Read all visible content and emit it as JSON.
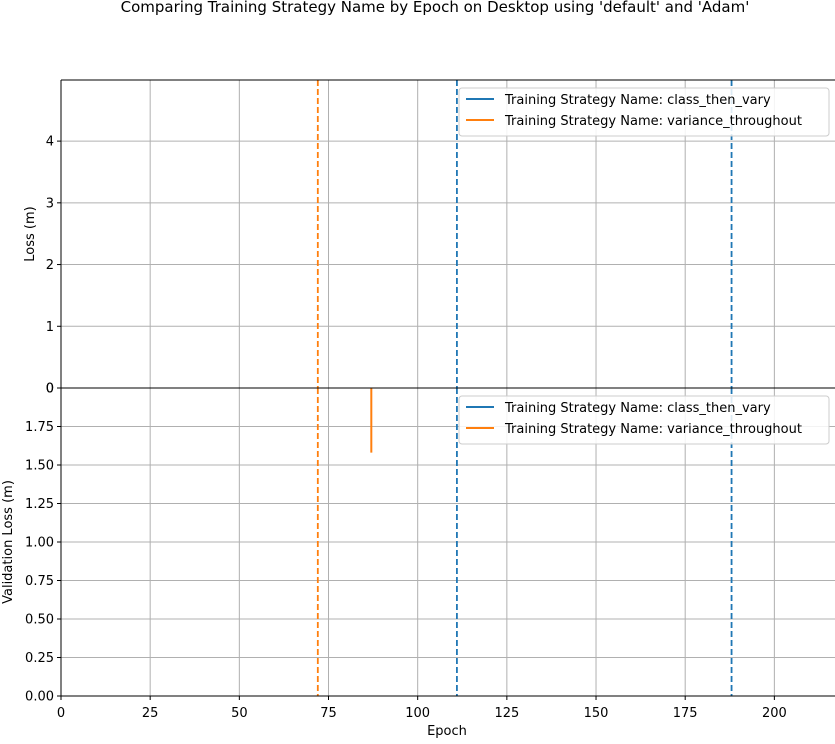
{
  "figure": {
    "title": "Comparing Training Strategy Name by Epoch on Desktop using 'default' and 'Adam'",
    "xlabel": "Epoch"
  },
  "chart_data": [
    {
      "type": "line",
      "ylabel": "Loss (m)",
      "xlim": [
        0,
        217
      ],
      "ylim": [
        0,
        4.99
      ],
      "x_ticks": [
        0,
        25,
        50,
        75,
        100,
        125,
        150,
        175,
        200
      ],
      "y_ticks": [
        0,
        1,
        2,
        3,
        4
      ],
      "y_tick_labels": [
        "0",
        "1",
        "2",
        "3",
        "4"
      ],
      "grid": true,
      "legend_position": "top-right",
      "series": [
        {
          "name": "Training Strategy Name: class_then_vary",
          "color": "#1f77b4",
          "x": [],
          "y": []
        },
        {
          "name": "Training Strategy Name: variance_throughout",
          "color": "#ff7f0e",
          "x": [],
          "y": []
        }
      ],
      "vlines": [
        {
          "x": 72,
          "color": "#ff7f0e",
          "style": "dashed"
        },
        {
          "x": 111,
          "color": "#1f77b4",
          "style": "dashed"
        },
        {
          "x": 188,
          "color": "#1f77b4",
          "style": "dashed"
        }
      ]
    },
    {
      "type": "line",
      "ylabel": "Validation Loss (m)",
      "xlabel": "Epoch",
      "xlim": [
        0,
        217
      ],
      "ylim": [
        0,
        2.0
      ],
      "x_ticks": [
        0,
        25,
        50,
        75,
        100,
        125,
        150,
        175,
        200
      ],
      "x_tick_labels": [
        "0",
        "25",
        "50",
        "75",
        "100",
        "125",
        "150",
        "175",
        "200"
      ],
      "y_ticks": [
        0,
        0.25,
        0.5,
        0.75,
        1.0,
        1.25,
        1.5,
        1.75
      ],
      "y_tick_labels": [
        "0.00",
        "0.25",
        "0.50",
        "0.75",
        "1.00",
        "1.25",
        "1.50",
        "1.75"
      ],
      "top_tick_label": "0",
      "grid": true,
      "legend_position": "top-right",
      "series": [
        {
          "name": "Training Strategy Name: class_then_vary",
          "color": "#1f77b4",
          "x": [],
          "y": []
        },
        {
          "name": "Training Strategy Name: variance_throughout",
          "color": "#ff7f0e",
          "x": [
            87,
            87
          ],
          "y": [
            2.0,
            1.58
          ]
        }
      ],
      "vlines": [
        {
          "x": 72,
          "color": "#ff7f0e",
          "style": "dashed"
        },
        {
          "x": 111,
          "color": "#1f77b4",
          "style": "dashed"
        },
        {
          "x": 188,
          "color": "#1f77b4",
          "style": "dashed"
        }
      ]
    }
  ]
}
